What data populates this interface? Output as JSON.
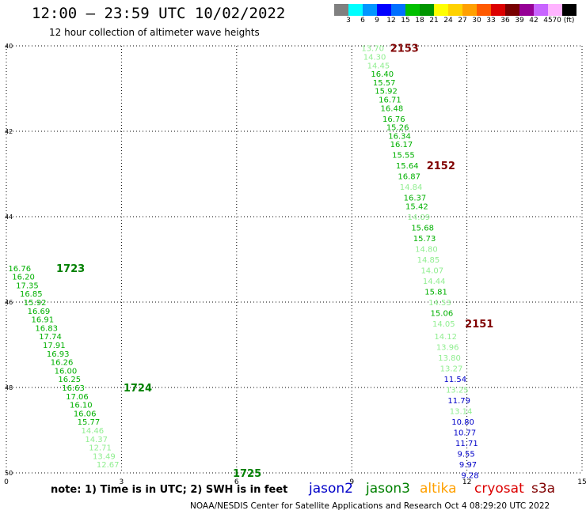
{
  "header": {
    "title": "12:00 – 23:59 UTC 10/02/2022",
    "subtitle": "12 hour collection of altimeter wave heights"
  },
  "color_scale": {
    "boxes": [
      "#808080",
      "#00ffff",
      "#0096ff",
      "#0000ff",
      "#0070ff",
      "#00c000",
      "#009600",
      "#ffff00",
      "#ffd200",
      "#ffa000",
      "#ff5a00",
      "#dc0000",
      "#780000",
      "#960096",
      "#c864ff",
      "#ffb4ff",
      "#000000"
    ],
    "labels": [
      "3",
      "6",
      "9",
      "12",
      "15",
      "18",
      "21",
      "24",
      "27",
      "30",
      "33",
      "36",
      "39",
      "42",
      "45",
      "70 (ft)"
    ]
  },
  "chart_data": {
    "type": "scatter",
    "title": "12:00 – 23:59 UTC 10/02/2022",
    "subtitle": "12 hour collection of altimeter wave heights",
    "x_ticks": [
      "0",
      "3",
      "6",
      "9",
      "12",
      "15"
    ],
    "y_ticks": [
      "40",
      "42",
      "44",
      "46",
      "48",
      "50"
    ],
    "xlim": [
      0,
      15
    ],
    "ylim": [
      40,
      50
    ],
    "y_inverted": true,
    "grid": true,
    "colors": {
      "dark": "#00b000",
      "light": "#90ee90",
      "blue": "#0000c8",
      "pass": "#800000",
      "pass_green": "#008000"
    },
    "series": [
      {
        "name": "pass-right",
        "points": [
          {
            "x": 9.25,
            "y": 40.05,
            "v": "13.70",
            "c": "light"
          },
          {
            "x": 9.3,
            "y": 40.25,
            "v": "14.30",
            "c": "light"
          },
          {
            "x": 9.4,
            "y": 40.45,
            "v": "14.45",
            "c": "light"
          },
          {
            "x": 9.5,
            "y": 40.65,
            "v": "16.40",
            "c": "dark"
          },
          {
            "x": 9.55,
            "y": 40.85,
            "v": "15.57",
            "c": "dark"
          },
          {
            "x": 9.6,
            "y": 41.05,
            "v": "15.92",
            "c": "dark"
          },
          {
            "x": 9.7,
            "y": 41.25,
            "v": "16.71",
            "c": "dark"
          },
          {
            "x": 9.75,
            "y": 41.45,
            "v": "16.48",
            "c": "dark"
          },
          {
            "x": 9.8,
            "y": 41.7,
            "v": "16.76",
            "c": "dark"
          },
          {
            "x": 9.9,
            "y": 41.9,
            "v": "15.26",
            "c": "dark"
          },
          {
            "x": 9.95,
            "y": 42.1,
            "v": "16.34",
            "c": "dark"
          },
          {
            "x": 10.0,
            "y": 42.3,
            "v": "16.17",
            "c": "dark"
          },
          {
            "x": 10.05,
            "y": 42.55,
            "v": "15.55",
            "c": "dark"
          },
          {
            "x": 10.15,
            "y": 42.8,
            "v": "15.64",
            "c": "dark"
          },
          {
            "x": 10.2,
            "y": 43.05,
            "v": "16.87",
            "c": "dark"
          },
          {
            "x": 10.25,
            "y": 43.3,
            "v": "14.84",
            "c": "light"
          },
          {
            "x": 10.35,
            "y": 43.55,
            "v": "16.37",
            "c": "dark"
          },
          {
            "x": 10.4,
            "y": 43.75,
            "v": "15.42",
            "c": "dark"
          },
          {
            "x": 10.45,
            "y": 44.0,
            "v": "14.09",
            "c": "light"
          },
          {
            "x": 10.55,
            "y": 44.25,
            "v": "15.68",
            "c": "dark"
          },
          {
            "x": 10.6,
            "y": 44.5,
            "v": "15.73",
            "c": "dark"
          },
          {
            "x": 10.65,
            "y": 44.75,
            "v": "14.80",
            "c": "light"
          },
          {
            "x": 10.7,
            "y": 45.0,
            "v": "14.85",
            "c": "light"
          },
          {
            "x": 10.8,
            "y": 45.25,
            "v": "14.07",
            "c": "light"
          },
          {
            "x": 10.85,
            "y": 45.5,
            "v": "14.44",
            "c": "light"
          },
          {
            "x": 10.9,
            "y": 45.75,
            "v": "15.81",
            "c": "dark"
          },
          {
            "x": 11.0,
            "y": 46.0,
            "v": "14.53",
            "c": "light"
          },
          {
            "x": 11.05,
            "y": 46.25,
            "v": "15.06",
            "c": "dark"
          },
          {
            "x": 11.1,
            "y": 46.5,
            "v": "14.05",
            "c": "light"
          },
          {
            "x": 11.15,
            "y": 46.8,
            "v": "14.12",
            "c": "light"
          },
          {
            "x": 11.2,
            "y": 47.05,
            "v": "13.96",
            "c": "light"
          },
          {
            "x": 11.25,
            "y": 47.3,
            "v": "13.80",
            "c": "light"
          },
          {
            "x": 11.3,
            "y": 47.55,
            "v": "13.27",
            "c": "light"
          },
          {
            "x": 11.4,
            "y": 47.8,
            "v": "11.54",
            "c": "blue"
          },
          {
            "x": 11.45,
            "y": 48.05,
            "v": "13.25",
            "c": "light"
          },
          {
            "x": 11.5,
            "y": 48.3,
            "v": "11.79",
            "c": "blue"
          },
          {
            "x": 11.55,
            "y": 48.55,
            "v": "13.14",
            "c": "light"
          },
          {
            "x": 11.6,
            "y": 48.8,
            "v": "10.80",
            "c": "blue"
          },
          {
            "x": 11.65,
            "y": 49.05,
            "v": "10.77",
            "c": "blue"
          },
          {
            "x": 11.7,
            "y": 49.3,
            "v": "11.71",
            "c": "blue"
          },
          {
            "x": 11.75,
            "y": 49.55,
            "v": "9.55",
            "c": "blue"
          },
          {
            "x": 11.8,
            "y": 49.8,
            "v": "9.97",
            "c": "blue"
          },
          {
            "x": 11.85,
            "y": 50.05,
            "v": "9.28",
            "c": "blue"
          }
        ]
      },
      {
        "name": "pass-left",
        "points": [
          {
            "x": 0.05,
            "y": 45.2,
            "v": "16.76",
            "c": "dark"
          },
          {
            "x": 0.15,
            "y": 45.4,
            "v": "16.20",
            "c": "dark"
          },
          {
            "x": 0.25,
            "y": 45.6,
            "v": "17.35",
            "c": "dark"
          },
          {
            "x": 0.35,
            "y": 45.8,
            "v": "16.85",
            "c": "dark"
          },
          {
            "x": 0.45,
            "y": 46.0,
            "v": "15.92",
            "c": "dark"
          },
          {
            "x": 0.55,
            "y": 46.2,
            "v": "16.69",
            "c": "dark"
          },
          {
            "x": 0.65,
            "y": 46.4,
            "v": "16.91",
            "c": "dark"
          },
          {
            "x": 0.75,
            "y": 46.6,
            "v": "16.83",
            "c": "dark"
          },
          {
            "x": 0.85,
            "y": 46.8,
            "v": "17.74",
            "c": "dark"
          },
          {
            "x": 0.95,
            "y": 47.0,
            "v": "17.91",
            "c": "dark"
          },
          {
            "x": 1.05,
            "y": 47.2,
            "v": "16.93",
            "c": "dark"
          },
          {
            "x": 1.15,
            "y": 47.4,
            "v": "16.26",
            "c": "dark"
          },
          {
            "x": 1.25,
            "y": 47.6,
            "v": "16.00",
            "c": "dark"
          },
          {
            "x": 1.35,
            "y": 47.8,
            "v": "16.25",
            "c": "dark"
          },
          {
            "x": 1.45,
            "y": 48.0,
            "v": "16.63",
            "c": "dark"
          },
          {
            "x": 1.55,
            "y": 48.2,
            "v": "17.06",
            "c": "dark"
          },
          {
            "x": 1.65,
            "y": 48.4,
            "v": "16.10",
            "c": "dark"
          },
          {
            "x": 1.75,
            "y": 48.6,
            "v": "16.06",
            "c": "dark"
          },
          {
            "x": 1.85,
            "y": 48.8,
            "v": "15.77",
            "c": "dark"
          },
          {
            "x": 1.95,
            "y": 49.0,
            "v": "14.46",
            "c": "light"
          },
          {
            "x": 2.05,
            "y": 49.2,
            "v": "14.37",
            "c": "light"
          },
          {
            "x": 2.15,
            "y": 49.4,
            "v": "12.71",
            "c": "light"
          },
          {
            "x": 2.25,
            "y": 49.6,
            "v": "13.49",
            "c": "light"
          },
          {
            "x": 2.35,
            "y": 49.8,
            "v": "12.67",
            "c": "light"
          }
        ]
      }
    ],
    "pass_labels": [
      {
        "text": "2153",
        "x": 10.0,
        "y": 40.05,
        "c": "pass"
      },
      {
        "text": "2152",
        "x": 10.95,
        "y": 42.8,
        "c": "pass"
      },
      {
        "text": "2151",
        "x": 11.95,
        "y": 46.5,
        "c": "pass"
      },
      {
        "text": "1723",
        "x": 1.3,
        "y": 45.2,
        "c": "pass_green"
      },
      {
        "text": "1724",
        "x": 3.05,
        "y": 48.0,
        "c": "pass_green"
      },
      {
        "text": "1725",
        "x": 5.9,
        "y": 50.0,
        "c": "pass_green"
      }
    ]
  },
  "legend": {
    "note": "note: 1) Time is in UTC; 2) SWH is in feet",
    "missions": [
      {
        "name": "jason2",
        "color": "#0000c8"
      },
      {
        "name": "jason3",
        "color": "#008000"
      },
      {
        "name": "altika",
        "color": "#ffa000"
      },
      {
        "name": "cryosat",
        "color": "#dc0000"
      },
      {
        "name": "s3a",
        "color": "#800000"
      }
    ]
  },
  "footer": "NOAA/NESDIS Center for Satellite Applications and Research   Oct  4 08:29:20 UTC 2022"
}
